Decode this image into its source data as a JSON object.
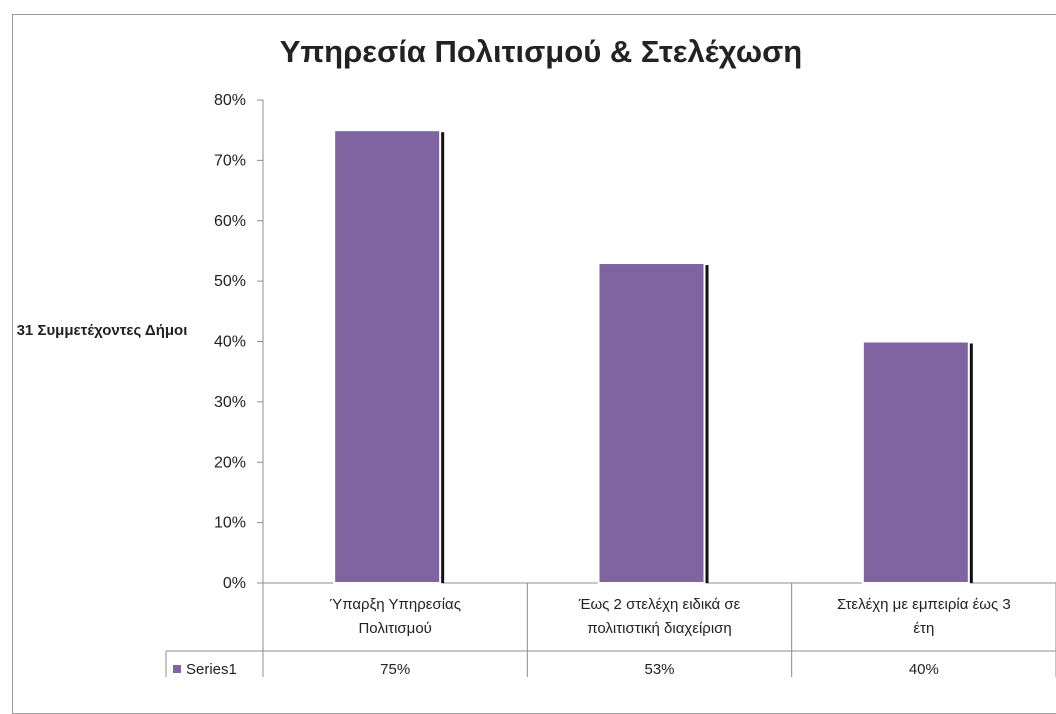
{
  "chart_data": {
    "type": "bar",
    "title": "Υπηρεσία Πολιτισμού & Στελέχωση",
    "ylabel": "31 Συμμετέχοντες Δήμοι",
    "categories": [
      [
        "Ύπαρξη Υπηρεσίας",
        "Πολιτισμού"
      ],
      [
        "Έως 2 στελέχη ειδικά σε",
        "πολιτιστική διαχείριση"
      ],
      [
        "Στελέχη με εμπειρία έως 3",
        "έτη"
      ]
    ],
    "series": [
      {
        "name": "Series1",
        "values": [
          0.75,
          0.53,
          0.4
        ],
        "labels": [
          "75%",
          "53%",
          "40%"
        ],
        "color": "#8064a2"
      }
    ],
    "ylim": [
      0,
      0.8
    ],
    "yticks": [
      "0%",
      "10%",
      "20%",
      "30%",
      "40%",
      "50%",
      "60%",
      "70%",
      "80%"
    ],
    "data_table": true,
    "grid": false
  }
}
